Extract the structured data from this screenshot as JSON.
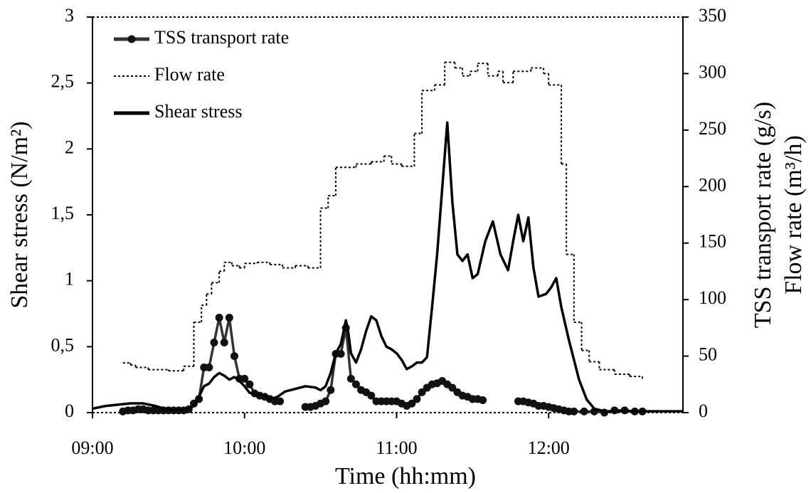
{
  "chart_data": {
    "type": "line",
    "xlabel": "Time (hh:mm)",
    "ylabel": "Shear stress (N/m²)",
    "y2label": [
      "TSS transport rate (g/s)",
      "Flow rate (m³/h)"
    ],
    "xlim": [
      "09:00",
      "12:53"
    ],
    "xticks": [
      "09:00",
      "10:00",
      "11:00",
      "12:00"
    ],
    "ylim": [
      0,
      3
    ],
    "yticks": [
      0,
      {
        "value": 0.5,
        "label": "0,5"
      },
      1,
      {
        "value": 1.5,
        "label": "1,5"
      },
      2,
      {
        "value": 2.5,
        "label": "2,5"
      },
      3
    ],
    "y2lim": [
      0,
      350
    ],
    "y2ticks": [
      0,
      50,
      100,
      150,
      200,
      250,
      300,
      350
    ],
    "legend": "upper left",
    "series": [
      {
        "name": "TSS transport rate",
        "color": "#333333",
        "axis": "y2",
        "style": "solid",
        "marker": true,
        "x": [
          "09:12",
          "09:14",
          "09:16",
          "09:18",
          "09:20",
          "09:22",
          "09:24",
          "09:26",
          "09:28",
          "09:30",
          "09:32",
          "09:34",
          "09:36",
          "09:38",
          "09:40",
          "09:42",
          "09:44",
          "09:46",
          "09:48",
          "09:50",
          "09:52",
          "09:54",
          "09:56",
          "09:58",
          "10:00",
          "10:02",
          "10:04",
          "10:06",
          "10:08",
          "10:10",
          "10:12",
          "10:14",
          "10:18",
          "10:24",
          "10:26",
          "10:28",
          "10:30",
          "10:32",
          "10:34",
          "10:36",
          "10:38",
          "10:40",
          "10:42",
          "10:44",
          "10:46",
          "10:48",
          "10:50",
          "10:52",
          "10:54",
          "10:56",
          "10:58",
          "11:00",
          "11:02",
          "11:04",
          "11:06",
          "11:08",
          "11:10",
          "11:12",
          "11:14",
          "11:16",
          "11:18",
          "11:20",
          "11:22",
          "11:24",
          "11:26",
          "11:28",
          "11:30",
          "11:32",
          "11:34",
          "11:40",
          "11:48",
          "11:50",
          "11:52",
          "11:54",
          "11:56",
          "11:58",
          "12:00",
          "12:02",
          "12:04",
          "12:06",
          "12:08",
          "12:10",
          "12:14",
          "12:18",
          "12:22",
          "12:26",
          "12:30",
          "12:34",
          "12:37"
        ],
        "values": [
          1,
          2,
          2,
          3,
          3,
          2,
          2,
          2,
          2,
          2,
          2,
          2,
          2,
          3,
          8,
          12,
          40,
          40,
          62,
          84,
          62,
          84,
          50,
          30,
          30,
          25,
          17,
          15,
          14,
          12,
          10,
          10,
          null,
          5,
          5,
          6,
          8,
          10,
          20,
          52,
          52,
          75,
          30,
          25,
          20,
          18,
          15,
          10,
          10,
          10,
          10,
          10,
          8,
          6,
          8,
          12,
          18,
          22,
          25,
          26,
          28,
          25,
          22,
          18,
          15,
          14,
          12,
          12,
          11,
          null,
          10,
          10,
          9,
          8,
          6,
          6,
          5,
          4,
          3,
          2,
          1,
          1,
          1,
          1,
          0,
          2,
          2,
          1,
          1
        ]
      },
      {
        "name": "Flow rate",
        "color": "#000000",
        "axis": "y2",
        "style": "dotted",
        "step": true,
        "x": [
          "09:12",
          "09:15",
          "09:17",
          "09:22",
          "09:30",
          "09:36",
          "09:40",
          "09:43",
          "09:45",
          "09:47",
          "09:50",
          "09:52",
          "09:55",
          "09:58",
          "10:00",
          "10:05",
          "10:10",
          "10:15",
          "10:20",
          "10:25",
          "10:30",
          "10:33",
          "10:36",
          "10:44",
          "10:50",
          "10:55",
          "10:58",
          "11:02",
          "11:07",
          "11:10",
          "11:15",
          "11:19",
          "11:23",
          "11:26",
          "11:29",
          "11:32",
          "11:36",
          "11:40",
          "11:42",
          "11:46",
          "11:53",
          "11:58",
          "12:00",
          "12:05",
          "12:07",
          "12:10",
          "12:13",
          "12:16",
          "12:20",
          "12:26",
          "12:32",
          "12:37"
        ],
        "values": [
          44,
          42,
          40,
          38,
          37,
          41,
          80,
          95,
          105,
          115,
          125,
          133,
          130,
          128,
          132,
          133,
          131,
          128,
          130,
          128,
          181,
          192,
          217,
          220,
          222,
          227,
          220,
          218,
          247,
          285,
          290,
          310,
          305,
          298,
          302,
          309,
          298,
          302,
          292,
          302,
          305,
          300,
          290,
          220,
          140,
          80,
          55,
          45,
          38,
          34,
          32,
          30
        ]
      },
      {
        "name": "Shear stress",
        "color": "#000000",
        "axis": "y",
        "style": "solid",
        "x": [
          "09:00",
          "09:05",
          "09:10",
          "09:15",
          "09:20",
          "09:25",
          "09:30",
          "09:35",
          "09:38",
          "09:40",
          "09:42",
          "09:44",
          "09:46",
          "09:48",
          "09:50",
          "09:52",
          "09:54",
          "09:56",
          "09:58",
          "10:00",
          "10:02",
          "10:05",
          "10:08",
          "10:10",
          "10:13",
          "10:16",
          "10:20",
          "10:24",
          "10:28",
          "10:30",
          "10:32",
          "10:34",
          "10:36",
          "10:38",
          "10:40",
          "10:41",
          "10:42",
          "10:44",
          "10:46",
          "10:48",
          "10:50",
          "10:52",
          "10:54",
          "10:56",
          "10:58",
          "11:00",
          "11:02",
          "11:04",
          "11:06",
          "11:08",
          "11:10",
          "11:12",
          "11:14",
          "11:16",
          "11:18",
          "11:20",
          "11:22",
          "11:24",
          "11:26",
          "11:28",
          "11:30",
          "11:32",
          "11:35",
          "11:38",
          "11:41",
          "11:44",
          "11:46",
          "11:48",
          "11:50",
          "11:52",
          "11:54",
          "11:56",
          "11:59",
          "12:01",
          "12:03",
          "12:05",
          "12:08",
          "12:10",
          "12:12",
          "12:15",
          "12:18",
          "12:22",
          "12:30",
          "12:40",
          "12:53"
        ],
        "values": [
          0.03,
          0.05,
          0.06,
          0.07,
          0.07,
          0.05,
          0.02,
          0.02,
          0.03,
          0.05,
          0.12,
          0.2,
          0.22,
          0.27,
          0.3,
          0.28,
          0.25,
          0.27,
          0.24,
          0.2,
          0.15,
          0.14,
          0.13,
          0.1,
          0.12,
          0.16,
          0.18,
          0.2,
          0.19,
          0.17,
          0.2,
          0.3,
          0.45,
          0.52,
          0.7,
          0.6,
          0.45,
          0.38,
          0.48,
          0.62,
          0.73,
          0.7,
          0.58,
          0.5,
          0.48,
          0.45,
          0.4,
          0.33,
          0.35,
          0.38,
          0.38,
          0.42,
          0.8,
          1.2,
          1.7,
          2.2,
          1.6,
          1.2,
          1.15,
          1.2,
          1.02,
          1.05,
          1.3,
          1.45,
          1.2,
          1.08,
          1.3,
          1.5,
          1.3,
          1.48,
          1.1,
          0.88,
          0.9,
          0.95,
          1.02,
          0.8,
          0.55,
          0.4,
          0.25,
          0.1,
          0.03,
          0.01,
          0.01,
          0.01,
          0.01
        ]
      }
    ]
  }
}
